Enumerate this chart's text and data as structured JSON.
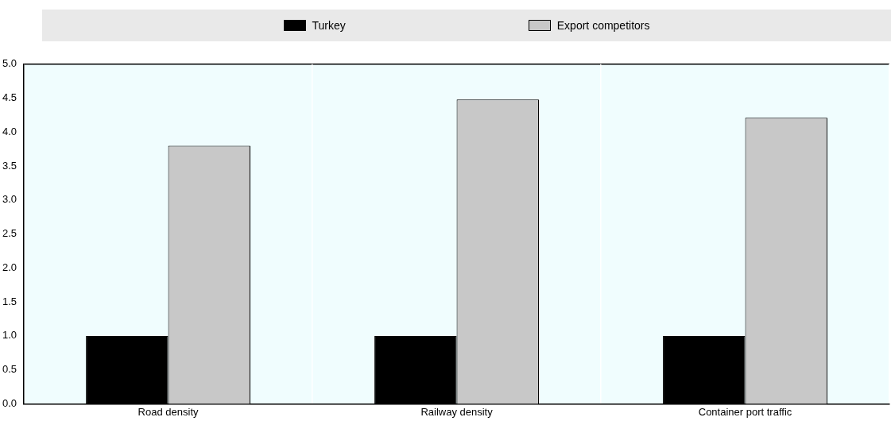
{
  "chart_data": {
    "type": "bar",
    "categories": [
      "Road density",
      "Railway density",
      "Container port traffic"
    ],
    "series": [
      {
        "name": "Turkey",
        "color": "#000000",
        "values": [
          1.0,
          1.0,
          1.0
        ]
      },
      {
        "name": "Export competitors",
        "color": "#c8c8c8",
        "values": [
          3.8,
          4.48,
          4.21
        ]
      }
    ],
    "ylim": [
      0,
      5
    ],
    "yticks": [
      {
        "value": 0,
        "label": "0.0"
      },
      0.5,
      {
        "value": 1,
        "label": "1.0"
      },
      1.5,
      {
        "value": 2,
        "label": "2.0"
      },
      2.5,
      {
        "value": 3,
        "label": "3.0"
      },
      3.5,
      {
        "value": 4,
        "label": "4.0"
      },
      4.5,
      {
        "value": 5,
        "label": "5.0"
      }
    ],
    "grid": "x",
    "legend": "top"
  }
}
